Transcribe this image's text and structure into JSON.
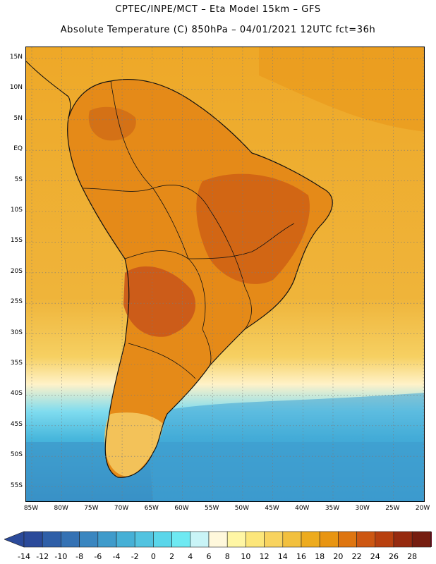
{
  "title": {
    "line1": "CPTEC/INPE/MCT –   Eta Model 15km – GFS",
    "line2": "Absolute Temperature (C) 850hPa – 04/01/2021 12UTC fct=36h"
  },
  "map": {
    "lat_labels": [
      "15N",
      "10N",
      "5N",
      "EQ",
      "5S",
      "10S",
      "15S",
      "20S",
      "25S",
      "30S",
      "35S",
      "40S",
      "45S",
      "50S",
      "55S"
    ],
    "lon_labels": [
      "85W",
      "80W",
      "75W",
      "70W",
      "65W",
      "60W",
      "55W",
      "50W",
      "45W",
      "40W",
      "35W",
      "30W",
      "25W",
      "20W"
    ],
    "gridlines": true,
    "region": "South America and adjacent oceans",
    "variable": "Absolute Temperature (C) at 850hPa"
  },
  "colorbar": {
    "labels": [
      "-14",
      "-12",
      "-10",
      "-8",
      "-6",
      "-4",
      "-2",
      "0",
      "2",
      "4",
      "6",
      "8",
      "10",
      "12",
      "14",
      "16",
      "18",
      "20",
      "22",
      "24",
      "26",
      "28"
    ],
    "colors": [
      "#2b4a9a",
      "#2f5fa8",
      "#3572b4",
      "#3a86c0",
      "#3f9bcb",
      "#46b0d6",
      "#52c3e0",
      "#5ad6ea",
      "#6ee9f2",
      "#c9f4f7",
      "#fff8dc",
      "#fff6a4",
      "#fce67a",
      "#f8d35f",
      "#f2c03e",
      "#edab1e",
      "#e89512",
      "#de7510",
      "#cd5712",
      "#b8400f",
      "#962a0f",
      "#761d10"
    ]
  },
  "colors": {
    "ocean_warm": "#eda72a",
    "land_hot": "#cc5a14",
    "ocean_cold": "#3fa3d3",
    "coast": "#111111"
  }
}
